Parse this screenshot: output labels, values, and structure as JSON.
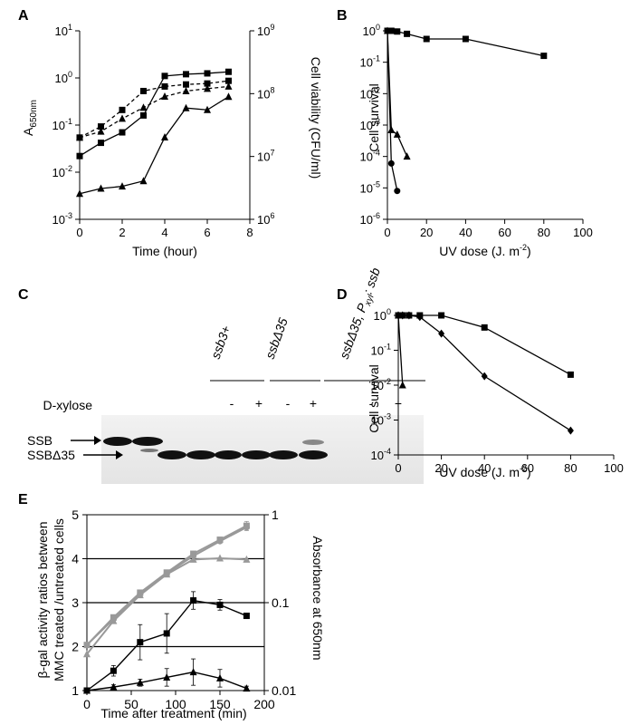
{
  "panels": {
    "A": {
      "label": "A",
      "ylabel_left_main": "A",
      "ylabel_left_sub": "650nm",
      "ylabel_right": "Cell viability (CFU/ml)",
      "xlabel": "Time (hour)",
      "left_ticks": [
        [
          "10",
          "-3"
        ],
        [
          "10",
          "-2"
        ],
        [
          "10",
          "-1"
        ],
        [
          "10",
          "0"
        ],
        [
          "10",
          "1"
        ]
      ],
      "right_ticks": [
        [
          "10",
          "6"
        ],
        [
          "10",
          "7"
        ],
        [
          "10",
          "8"
        ],
        [
          "10",
          "9"
        ]
      ],
      "x_ticks": [
        "0",
        "2",
        "4",
        "6",
        "8"
      ]
    },
    "B": {
      "label": "B",
      "ylabel": "Cell survival",
      "xlabel": "UV dose (J. m",
      "xlabel_sup": "-2",
      "xlabel_end": ")",
      "y_ticks": [
        [
          "10",
          "0"
        ],
        [
          "10",
          "-1"
        ],
        [
          "10",
          "-2"
        ],
        [
          "10",
          "-3"
        ],
        [
          "10",
          "-4"
        ],
        [
          "10",
          "-5"
        ],
        [
          "10",
          "-6"
        ]
      ],
      "x_ticks": [
        "0",
        "20",
        "40",
        "60",
        "80",
        "100"
      ]
    },
    "C": {
      "label": "C",
      "strains": [
        "ssb3+",
        "ssbΔ35",
        "ssbΔ35, P"
      ],
      "strain3_sub": "xyl",
      "strain3_end": ": ssb",
      "treatment_label": "D-xylose",
      "lane_signs": [
        "-",
        "+",
        "-",
        "+",
        "-",
        "+"
      ],
      "band_labels": [
        "SSB",
        "SSBΔ35"
      ]
    },
    "D": {
      "label": "D",
      "ylabel": "Cell survival",
      "xlabel": "UV dose (J. m",
      "xlabel_sup": "-2",
      "xlabel_end": ")",
      "y_ticks": [
        [
          "10",
          "0"
        ],
        [
          "10",
          "-1"
        ],
        [
          "10",
          "-2"
        ],
        [
          "10",
          "-3"
        ],
        [
          "10",
          "-4"
        ]
      ],
      "x_ticks": [
        "0",
        "20",
        "40",
        "60",
        "80",
        "100"
      ]
    },
    "E": {
      "label": "E",
      "ylabel_left_1": "β-gal activity ratios between",
      "ylabel_left_2": "MMC treated /untreated cells",
      "ylabel_right": "Absorbance at 650nm",
      "xlabel": "Time after treatment (min)",
      "left_ticks": [
        "1",
        "2",
        "3",
        "4",
        "5"
      ],
      "right_ticks": [
        "0.01",
        "0.1",
        "1"
      ],
      "x_ticks": [
        "0",
        "50",
        "100",
        "150",
        "200"
      ]
    }
  },
  "colors": {
    "black": "#000000",
    "grey": "#999999"
  },
  "chart_data": [
    {
      "panel": "A",
      "type": "line",
      "xlim": [
        0,
        8
      ],
      "ylim": [
        0.001,
        10
      ],
      "yscale": "log",
      "y2lim": [
        1000000,
        1000000000
      ],
      "y2scale": "log",
      "series": [
        {
          "marker": "square",
          "dashed": false,
          "axis": "left",
          "x": [
            0,
            1,
            2,
            3,
            4,
            5,
            6,
            7
          ],
          "y": [
            0.022,
            0.042,
            0.07,
            0.16,
            1.1,
            1.2,
            1.25,
            1.35
          ]
        },
        {
          "marker": "triangle",
          "dashed": false,
          "axis": "left",
          "x": [
            0,
            1,
            2,
            3,
            4,
            5,
            6,
            7
          ],
          "y": [
            0.0035,
            0.0045,
            0.005,
            0.0065,
            0.055,
            0.23,
            0.21,
            0.4
          ]
        },
        {
          "marker": "square",
          "dashed": true,
          "axis": "right",
          "x": [
            0,
            1,
            2,
            3,
            4,
            5,
            6,
            7
          ],
          "y": [
            20000000,
            30000000,
            55000000,
            110000000,
            130000000,
            140000000,
            145000000,
            160000000
          ]
        },
        {
          "marker": "triangle",
          "dashed": true,
          "axis": "right",
          "x": [
            0,
            1,
            2,
            3,
            4,
            5,
            6,
            7
          ],
          "y": [
            20000000,
            25000000,
            40000000,
            60000000,
            90000000,
            110000000,
            120000000,
            130000000
          ]
        }
      ]
    },
    {
      "panel": "B",
      "type": "line",
      "xlim": [
        0,
        100
      ],
      "ylim": [
        1e-06,
        1
      ],
      "yscale": "log",
      "series": [
        {
          "marker": "square",
          "x": [
            0,
            1,
            2,
            5,
            10,
            20,
            40,
            80
          ],
          "y": [
            1,
            1,
            1,
            0.95,
            0.8,
            0.55,
            0.55,
            0.16
          ]
        },
        {
          "marker": "triangle",
          "x": [
            0,
            2,
            5,
            10
          ],
          "y": [
            1,
            0.0007,
            0.0005,
            0.0001
          ]
        },
        {
          "marker": "circle",
          "x": [
            0,
            2,
            5
          ],
          "y": [
            1,
            6e-05,
            8e-06
          ]
        }
      ]
    },
    {
      "panel": "D",
      "type": "line",
      "xlim": [
        0,
        100
      ],
      "ylim": [
        0.0001,
        1
      ],
      "yscale": "log",
      "series": [
        {
          "marker": "square",
          "x": [
            0,
            2,
            5,
            10,
            20,
            40,
            80
          ],
          "y": [
            1,
            1,
            1,
            1,
            1,
            0.45,
            0.02
          ]
        },
        {
          "marker": "diamond",
          "x": [
            0,
            2,
            5,
            10,
            20,
            40,
            80
          ],
          "y": [
            1,
            1,
            1,
            0.9,
            0.3,
            0.018,
            0.0005
          ]
        },
        {
          "marker": "triangle",
          "x": [
            0,
            2
          ],
          "y": [
            1,
            0.01
          ]
        }
      ]
    },
    {
      "panel": "E",
      "type": "line",
      "xlim": [
        0,
        200
      ],
      "ylim": [
        1,
        5
      ],
      "y2lim": [
        0.01,
        1
      ],
      "y2scale": "log",
      "series": [
        {
          "marker": "square",
          "color": "black",
          "axis": "left",
          "x": [
            0,
            30,
            60,
            90,
            120,
            150,
            180
          ],
          "y": [
            1,
            1.45,
            2.1,
            2.3,
            3.05,
            2.95,
            2.7
          ],
          "err": [
            0,
            0.12,
            0.4,
            0.45,
            0.2,
            0.12,
            0.05
          ]
        },
        {
          "marker": "triangle",
          "color": "black",
          "axis": "left",
          "x": [
            0,
            30,
            60,
            90,
            120,
            150,
            180
          ],
          "y": [
            1,
            1.08,
            1.18,
            1.3,
            1.42,
            1.28,
            1.05
          ],
          "err": [
            0,
            0.05,
            0.08,
            0.2,
            0.3,
            0.2,
            0.05
          ]
        },
        {
          "marker": "square",
          "color": "grey",
          "axis": "right",
          "x": [
            0,
            30,
            60,
            90,
            120,
            150,
            180
          ],
          "y": [
            0.033,
            0.068,
            0.13,
            0.22,
            0.36,
            0.52,
            0.75
          ],
          "err": [
            0,
            0,
            0,
            0,
            0,
            0,
            0.09
          ]
        },
        {
          "marker": "triangle",
          "color": "grey",
          "axis": "right",
          "x": [
            0,
            30,
            60,
            90,
            120,
            150,
            180
          ],
          "y": [
            0.026,
            0.062,
            0.122,
            0.21,
            0.31,
            0.32,
            0.31
          ],
          "err": [
            0,
            0,
            0,
            0,
            0,
            0,
            0
          ]
        },
        {
          "marker": "circle",
          "color": "grey",
          "axis": "right",
          "x": [
            0,
            30,
            60,
            90,
            120,
            150,
            180
          ],
          "y": [
            0.033,
            0.065,
            0.125,
            0.215,
            0.34,
            0.5,
            0.72
          ],
          "err": [
            0,
            0,
            0,
            0,
            0,
            0,
            0
          ]
        }
      ]
    }
  ]
}
